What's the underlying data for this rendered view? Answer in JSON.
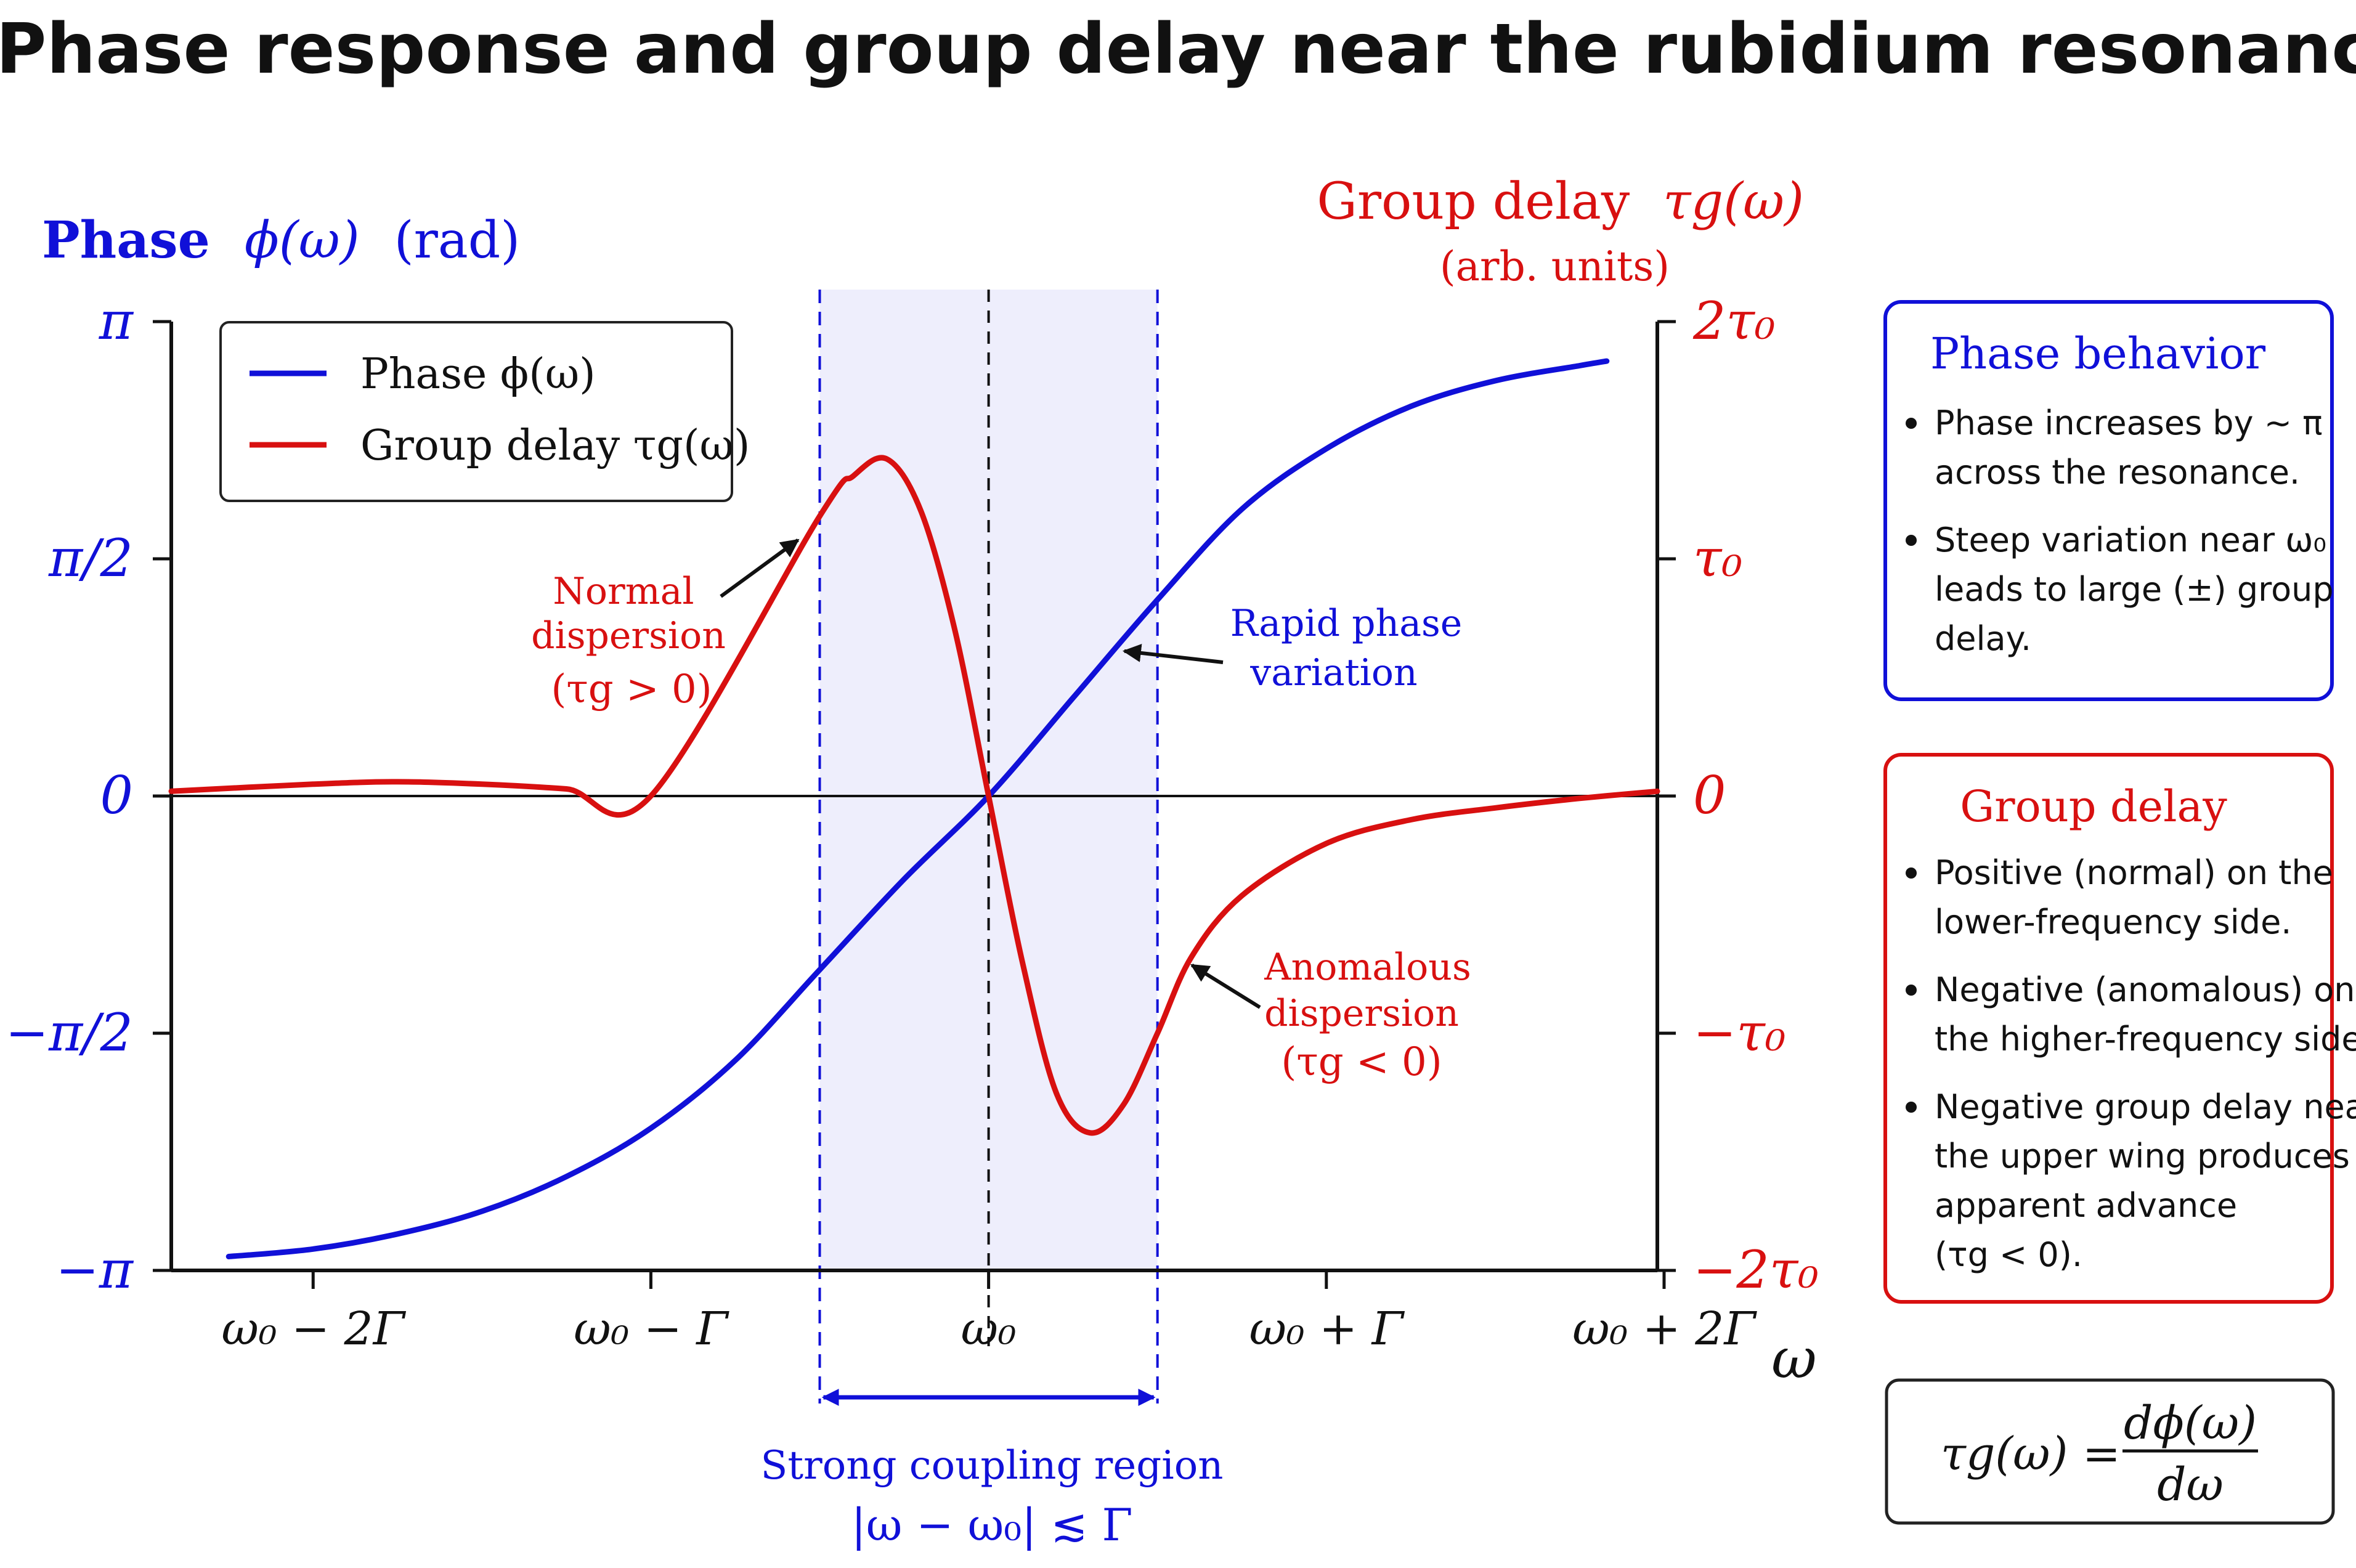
{
  "chart_data": {
    "type": "line",
    "title": "Phase response and group delay near the rubidium resonance",
    "y_left_label": {
      "name": "Phase",
      "symbol": "ϕ(ω)",
      "unit": "(rad)"
    },
    "y_right_label": {
      "name": "Group delay",
      "symbol": "τg(ω)",
      "unit": "(arb. units)"
    },
    "xlabel": "ω",
    "x_ticks": [
      "ω₀ − 2Γ",
      "ω₀ − Γ",
      "ω₀",
      "ω₀ + Γ",
      "ω₀ + 2Γ"
    ],
    "x_tick_values": [
      -2,
      -1,
      0,
      1,
      2
    ],
    "y_left_ticks": [
      "π",
      "π/2",
      "0",
      "−π/2",
      "−π"
    ],
    "y_left_tick_values": [
      3.1416,
      1.5708,
      0,
      -1.5708,
      -3.1416
    ],
    "y_right_ticks": [
      "2τ₀",
      "τ₀",
      "0",
      "−τ₀",
      "−2τ₀"
    ],
    "y_right_tick_values": [
      2,
      1,
      0,
      -1,
      -2
    ],
    "xlim": [
      -2.42,
      1.98
    ],
    "ylim_left": [
      -3.1416,
      3.1416
    ],
    "ylim_right": [
      -2,
      2
    ],
    "series": [
      {
        "name": "Phase ϕ(ω)",
        "axis": "left",
        "color": "#1010d8",
        "x": [
          -2.25,
          -2.0,
          -1.75,
          -1.5,
          -1.25,
          -1.0,
          -0.75,
          -0.5,
          -0.25,
          0.0,
          0.25,
          0.5,
          0.75,
          1.0,
          1.25,
          1.5,
          1.75,
          1.83
        ],
        "y": [
          -3.05,
          -3.0,
          -2.9,
          -2.75,
          -2.52,
          -2.2,
          -1.75,
          -1.15,
          -0.55,
          0.0,
          0.65,
          1.3,
          1.9,
          2.3,
          2.58,
          2.75,
          2.85,
          2.88
        ]
      },
      {
        "name": "Group delay τg(ω)",
        "axis": "right",
        "color": "#d81010",
        "x": [
          -2.42,
          -2.0,
          -1.75,
          -1.5,
          -1.25,
          -1.0,
          -0.5,
          -0.4,
          -0.3,
          -0.2,
          -0.1,
          0.0,
          0.1,
          0.2,
          0.3,
          0.4,
          0.5,
          0.6,
          0.75,
          1.0,
          1.25,
          1.5,
          1.75,
          1.98
        ],
        "y": [
          0.02,
          0.05,
          0.06,
          0.05,
          0.03,
          0.0,
          1.18,
          1.35,
          1.42,
          1.2,
          0.7,
          0.0,
          -0.7,
          -1.25,
          -1.42,
          -1.3,
          -1.0,
          -0.68,
          -0.42,
          -0.2,
          -0.1,
          -0.05,
          -0.01,
          0.02
        ]
      }
    ],
    "legend": {
      "position": "top-left",
      "entries": [
        "Phase ϕ(ω)",
        "Group delay τg(ω)"
      ]
    },
    "shaded_region": {
      "x_range": [
        -0.5,
        0.5
      ],
      "label": "Strong coupling region",
      "condition": "|ω − ω₀| ≲ Γ"
    },
    "annotations": {
      "normal": {
        "lines": [
          "Normal",
          "dispersion",
          "(τg > 0)"
        ],
        "point": [
          -0.55,
          1.1
        ]
      },
      "rapid": {
        "lines": [
          "Rapid phase",
          "variation"
        ],
        "point": [
          0.38,
          0.98
        ]
      },
      "anomalous": {
        "lines": [
          "Anomalous",
          "dispersion",
          "(τg < 0)"
        ],
        "point": [
          0.58,
          -0.7
        ]
      }
    }
  },
  "side_boxes": {
    "phase": {
      "title": "Phase behavior",
      "bullets": [
        [
          "Phase increases by ∼ π",
          "across the resonance."
        ],
        [
          "Steep variation near ω₀",
          "leads to large (±) group",
          "delay."
        ]
      ]
    },
    "group": {
      "title": "Group delay",
      "bullets": [
        [
          "Positive (normal) on the",
          "lower-frequency side."
        ],
        [
          "Negative (anomalous) on",
          "the higher-frequency side."
        ],
        [
          "Negative group delay near",
          "the upper wing produces",
          "apparent advance",
          "(τg < 0)."
        ]
      ]
    },
    "formula": {
      "lhs": "τg(ω) =",
      "numerator": "dϕ(ω)",
      "denominator": "dω"
    }
  },
  "colors": {
    "blue": "#1010d8",
    "red": "#d81010",
    "shade": "#eeeefc"
  }
}
